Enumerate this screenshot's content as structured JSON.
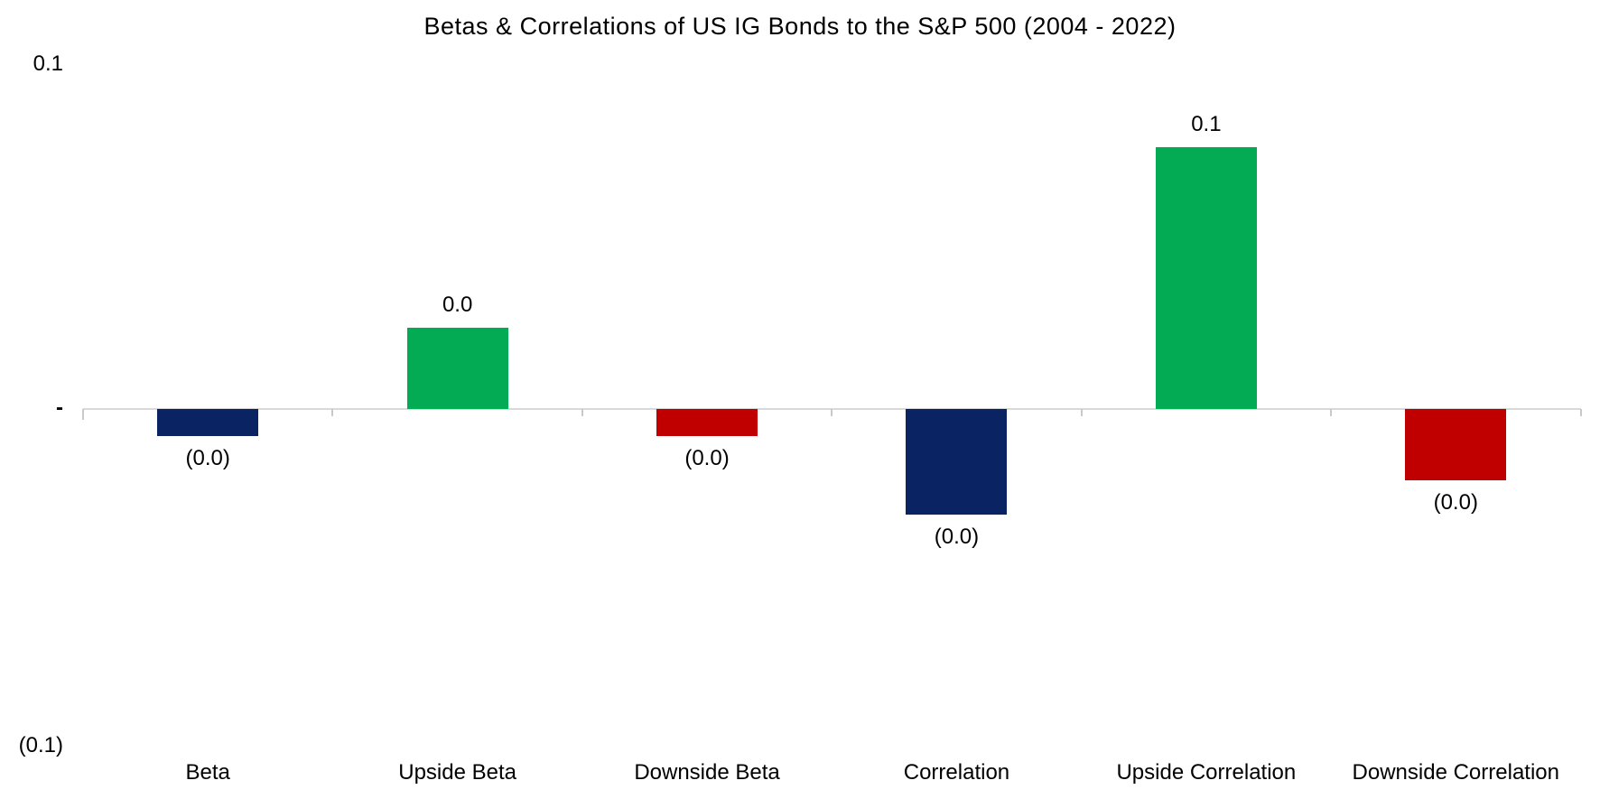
{
  "chart": {
    "title": "Betas & Correlations of US IG Bonds to the S&P 500 (2004 - 2022)",
    "y_axis": {
      "top": "0.1",
      "zero": "-",
      "bottom": "(0.1)"
    }
  },
  "chart_data": {
    "type": "bar",
    "title": "Betas & Correlations of US IG Bonds to the S&P 500 (2004 - 2022)",
    "categories": [
      "Beta",
      "Upside Beta",
      "Downside Beta",
      "Correlation",
      "Upside Correlation",
      "Downside Correlation"
    ],
    "values": [
      -0.008,
      0.024,
      -0.008,
      -0.031,
      0.077,
      -0.021
    ],
    "data_labels": [
      "(0.0)",
      "0.0",
      "(0.0)",
      "(0.0)",
      "0.1",
      "(0.0)"
    ],
    "bar_colors": [
      "#0a2463",
      "#04ab55",
      "#c00000",
      "#0a2463",
      "#04ab55",
      "#c00000"
    ],
    "ylim": [
      -0.1,
      0.1
    ],
    "ytick_labels": [
      "0.1",
      "-",
      "(0.1)"
    ],
    "xlabel": "",
    "ylabel": "",
    "grid": false,
    "legend": false,
    "axis_color": "#d9d9d9"
  }
}
